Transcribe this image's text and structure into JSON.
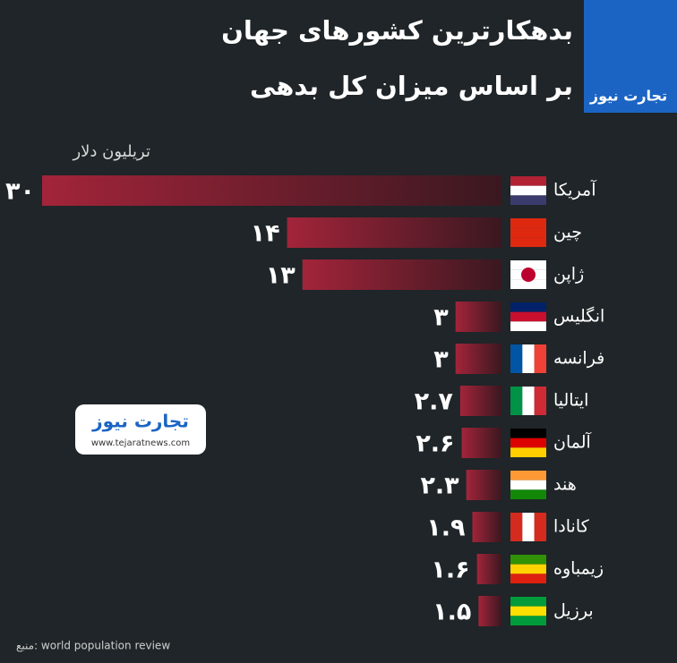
{
  "chart_data": {
    "type": "bar",
    "orientation": "horizontal",
    "title": "بدهکارترین کشورهای جهان",
    "subtitle": "بر اساس میزان کل بدهی",
    "unit": "تریلیون دلار",
    "categories": [
      "آمریکا",
      "چین",
      "ژاپن",
      "انگلیس",
      "فرانسه",
      "ایتالیا",
      "آلمان",
      "هند",
      "کانادا",
      "زیمباوه",
      "برزیل"
    ],
    "values": [
      30,
      14,
      13,
      3,
      3,
      2.7,
      2.6,
      2.3,
      1.9,
      1.6,
      1.5
    ],
    "value_labels": [
      "۳۰",
      "۱۴",
      "۱۳",
      "۳",
      "۳",
      "۲.۷",
      "۲.۶",
      "۲.۳",
      "۱.۹",
      "۱.۶",
      "۱.۵"
    ],
    "color": "#8e1f33",
    "xlim": [
      0,
      30
    ],
    "source": "منبع: world population review"
  },
  "logo": {
    "name": "تجارت نیوز",
    "site": "www.tejaratnews.com"
  }
}
